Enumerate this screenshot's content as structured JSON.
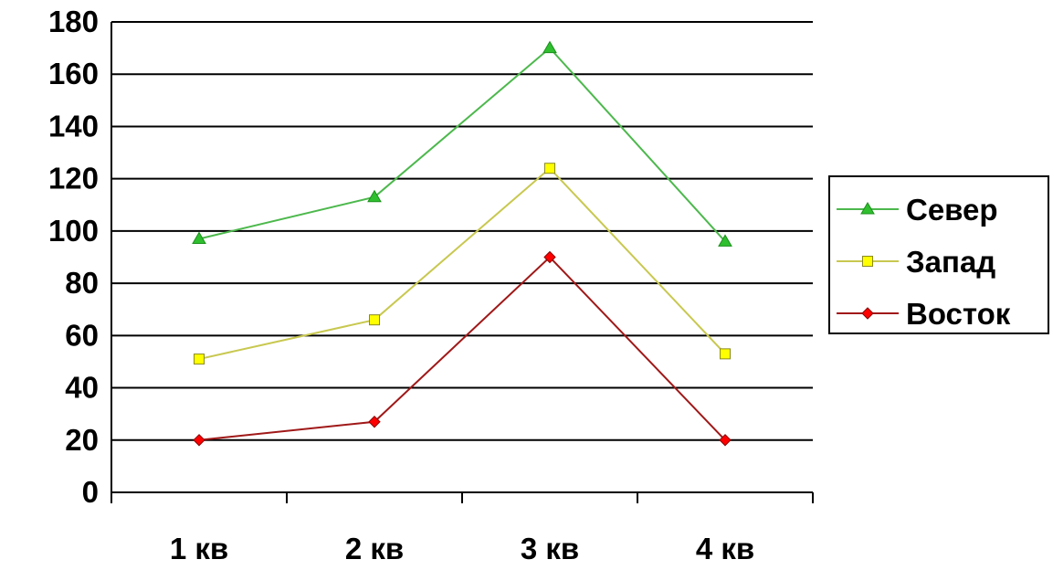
{
  "chart_data": {
    "type": "line",
    "categories": [
      "1 кв",
      "2 кв",
      "3 кв",
      "4 кв"
    ],
    "series": [
      {
        "name": "Север",
        "values": [
          97,
          113,
          170,
          96
        ],
        "color": "#2fbf2f",
        "line_color": "#4cb84c",
        "marker": "triangle"
      },
      {
        "name": "Запад",
        "values": [
          51,
          66,
          124,
          53
        ],
        "color": "#ffff00",
        "line_color": "#c8c850",
        "marker": "square"
      },
      {
        "name": "Восток",
        "values": [
          20,
          27,
          90,
          20
        ],
        "color": "#ff0000",
        "line_color": "#a01818",
        "marker": "diamond"
      }
    ],
    "ylim": [
      0,
      180
    ],
    "yticks": [
      "0",
      "20",
      "40",
      "60",
      "80",
      "100",
      "120",
      "140",
      "160",
      "180"
    ],
    "grid": true,
    "legend_position": "right",
    "title": "",
    "xlabel": "",
    "ylabel": ""
  }
}
